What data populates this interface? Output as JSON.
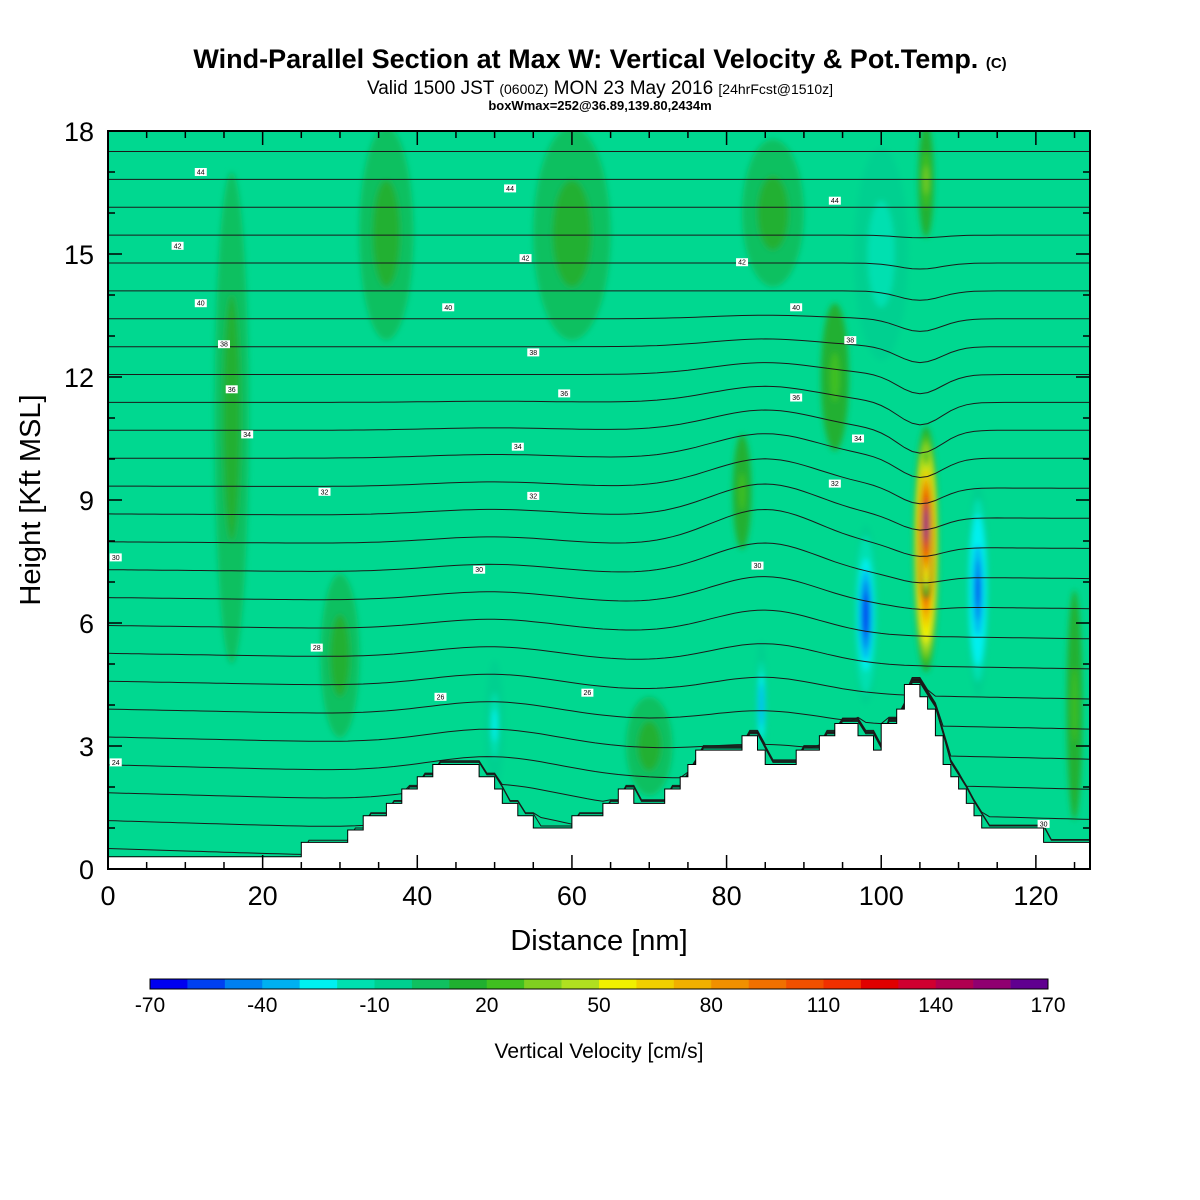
{
  "header": {
    "title": "Wind-Parallel Section at Max W: Vertical Velocity & Pot.Temp.",
    "copyright": "(C)",
    "valid_prefix": "Valid 1500 JST",
    "valid_zulu": "(0600Z)",
    "valid_date": "MON 23 May 2016",
    "forecast": "[24hrFcst@1510z]",
    "boxinfo": "boxWmax=252@36.89,139.80,2434m"
  },
  "chart_data": {
    "type": "heatmap",
    "xlabel": "Distance [nm]",
    "ylabel": "Height [Kft MSL]",
    "xlim": [
      0,
      127
    ],
    "ylim": [
      0,
      18
    ],
    "xticks": [
      0,
      20,
      40,
      60,
      80,
      100,
      120
    ],
    "yticks": [
      0,
      3,
      6,
      9,
      12,
      15,
      18
    ],
    "colorbar": {
      "label": "Vertical Velocity [cm/s]",
      "tick_labels": [
        "-70",
        "-40",
        "-10",
        "20",
        "50",
        "80",
        "110",
        "140",
        "170"
      ],
      "tick_values": [
        -70,
        -40,
        -10,
        20,
        50,
        80,
        110,
        140,
        170
      ],
      "min": -70,
      "step": 10,
      "colors": [
        "#0000f0",
        "#0040f0",
        "#0080f0",
        "#00b0f0",
        "#00f0f0",
        "#00e0b0",
        "#00d090",
        "#10c060",
        "#20b030",
        "#40c020",
        "#80d020",
        "#b0e020",
        "#f0f000",
        "#f0d000",
        "#f0b000",
        "#f09000",
        "#f07000",
        "#f05000",
        "#f03000",
        "#e00000",
        "#d00030",
        "#b00050",
        "#900070",
        "#600090"
      ]
    },
    "background_color": "#00d890",
    "terrain": [
      [
        0,
        0.3
      ],
      [
        25,
        0.3
      ],
      [
        25,
        0.65
      ],
      [
        31,
        0.65
      ],
      [
        31,
        0.95
      ],
      [
        33,
        0.95
      ],
      [
        33,
        1.3
      ],
      [
        36,
        1.3
      ],
      [
        36,
        1.6
      ],
      [
        38,
        1.6
      ],
      [
        38,
        1.95
      ],
      [
        40,
        1.95
      ],
      [
        40,
        2.25
      ],
      [
        42,
        2.25
      ],
      [
        42,
        2.55
      ],
      [
        48,
        2.55
      ],
      [
        48,
        2.25
      ],
      [
        50,
        2.25
      ],
      [
        50,
        1.95
      ],
      [
        51,
        1.95
      ],
      [
        51,
        1.6
      ],
      [
        53,
        1.6
      ],
      [
        53,
        1.3
      ],
      [
        55,
        1.3
      ],
      [
        55,
        1.0
      ],
      [
        60,
        1.0
      ],
      [
        60,
        1.3
      ],
      [
        64,
        1.3
      ],
      [
        64,
        1.6
      ],
      [
        66,
        1.6
      ],
      [
        66,
        1.95
      ],
      [
        68,
        1.95
      ],
      [
        68,
        1.6
      ],
      [
        72,
        1.6
      ],
      [
        72,
        1.95
      ],
      [
        74,
        1.95
      ],
      [
        74,
        2.25
      ],
      [
        75,
        2.25
      ],
      [
        75,
        2.55
      ],
      [
        76,
        2.55
      ],
      [
        76,
        2.9
      ],
      [
        82,
        2.9
      ],
      [
        82,
        3.25
      ],
      [
        84,
        3.25
      ],
      [
        84,
        2.9
      ],
      [
        85,
        2.9
      ],
      [
        85,
        2.55
      ],
      [
        89,
        2.55
      ],
      [
        89,
        2.9
      ],
      [
        92,
        2.9
      ],
      [
        92,
        3.25
      ],
      [
        94,
        3.25
      ],
      [
        94,
        3.55
      ],
      [
        97,
        3.55
      ],
      [
        97,
        3.25
      ],
      [
        99,
        3.25
      ],
      [
        99,
        2.9
      ],
      [
        100,
        2.9
      ],
      [
        100,
        3.55
      ],
      [
        102,
        3.55
      ],
      [
        102,
        3.9
      ],
      [
        103,
        3.9
      ],
      [
        103,
        4.5
      ],
      [
        105,
        4.5
      ],
      [
        105,
        4.2
      ],
      [
        106,
        4.2
      ],
      [
        106,
        3.9
      ],
      [
        107,
        3.9
      ],
      [
        107,
        3.25
      ],
      [
        108,
        3.25
      ],
      [
        108,
        2.55
      ],
      [
        109,
        2.55
      ],
      [
        109,
        2.25
      ],
      [
        110,
        2.25
      ],
      [
        110,
        1.95
      ],
      [
        111,
        1.95
      ],
      [
        111,
        1.6
      ],
      [
        112,
        1.6
      ],
      [
        112,
        1.3
      ],
      [
        113,
        1.3
      ],
      [
        113,
        1.0
      ],
      [
        121,
        1.0
      ],
      [
        121,
        0.65
      ],
      [
        127,
        0.65
      ]
    ],
    "w_features": [
      {
        "x": 105.8,
        "y": 7.8,
        "rx": 1.6,
        "ry": 3.0,
        "w": 160
      },
      {
        "x": 105.8,
        "y": 8.4,
        "rx": 1.0,
        "ry": 1.8,
        "w": 190
      },
      {
        "x": 105.8,
        "y": 16.8,
        "rx": 1.0,
        "ry": 1.4,
        "w": 30
      },
      {
        "x": 98.0,
        "y": 6.2,
        "rx": 1.6,
        "ry": 2.2,
        "w": -60
      },
      {
        "x": 112.5,
        "y": 6.8,
        "rx": 1.5,
        "ry": 2.6,
        "w": -55
      },
      {
        "x": 84.5,
        "y": 4.0,
        "rx": 0.8,
        "ry": 1.6,
        "w": -40
      },
      {
        "x": 50.0,
        "y": 3.5,
        "rx": 1.2,
        "ry": 1.6,
        "w": -25
      },
      {
        "x": 94.0,
        "y": 12.0,
        "rx": 1.8,
        "ry": 1.8,
        "w": 25
      },
      {
        "x": 82.0,
        "y": 9.2,
        "rx": 1.2,
        "ry": 1.4,
        "w": 25
      },
      {
        "x": 16.0,
        "y": 11.0,
        "rx": 2.2,
        "ry": 6.0,
        "w": 10
      },
      {
        "x": 36.0,
        "y": 15.5,
        "rx": 3.5,
        "ry": 2.6,
        "w": 10
      },
      {
        "x": 60.0,
        "y": 15.5,
        "rx": 5.0,
        "ry": 2.6,
        "w": 10
      },
      {
        "x": 86.0,
        "y": 16.0,
        "rx": 4.0,
        "ry": 1.8,
        "w": 10
      },
      {
        "x": 100.0,
        "y": 15.0,
        "rx": 3.5,
        "ry": 2.6,
        "w": -20
      },
      {
        "x": 30.0,
        "y": 5.2,
        "rx": 2.5,
        "ry": 2.0,
        "w": 10
      },
      {
        "x": 70.0,
        "y": 3.0,
        "rx": 3.0,
        "ry": 1.2,
        "w": 10
      },
      {
        "x": 125.0,
        "y": 4.0,
        "rx": 1.0,
        "ry": 2.8,
        "w": 25
      }
    ],
    "theta_labels": [
      {
        "x": 12,
        "y": 17.0,
        "text": "44"
      },
      {
        "x": 52,
        "y": 16.6,
        "text": "44"
      },
      {
        "x": 94,
        "y": 16.3,
        "text": "44"
      },
      {
        "x": 9,
        "y": 15.2,
        "text": "42"
      },
      {
        "x": 54,
        "y": 14.9,
        "text": "42"
      },
      {
        "x": 82,
        "y": 14.8,
        "text": "42"
      },
      {
        "x": 12,
        "y": 13.8,
        "text": "40"
      },
      {
        "x": 44,
        "y": 13.7,
        "text": "40"
      },
      {
        "x": 89,
        "y": 13.7,
        "text": "40"
      },
      {
        "x": 15,
        "y": 12.8,
        "text": "38"
      },
      {
        "x": 55,
        "y": 12.6,
        "text": "38"
      },
      {
        "x": 96,
        "y": 12.9,
        "text": "38"
      },
      {
        "x": 16,
        "y": 11.7,
        "text": "36"
      },
      {
        "x": 59,
        "y": 11.6,
        "text": "36"
      },
      {
        "x": 89,
        "y": 11.5,
        "text": "36"
      },
      {
        "x": 18,
        "y": 10.6,
        "text": "34"
      },
      {
        "x": 53,
        "y": 10.3,
        "text": "34"
      },
      {
        "x": 97,
        "y": 10.5,
        "text": "34"
      },
      {
        "x": 28,
        "y": 9.2,
        "text": "32"
      },
      {
        "x": 55,
        "y": 9.1,
        "text": "32"
      },
      {
        "x": 94,
        "y": 9.4,
        "text": "32"
      },
      {
        "x": 1,
        "y": 7.6,
        "text": "30"
      },
      {
        "x": 48,
        "y": 7.3,
        "text": "30"
      },
      {
        "x": 84,
        "y": 7.4,
        "text": "30"
      },
      {
        "x": 27,
        "y": 5.4,
        "text": "28"
      },
      {
        "x": 43,
        "y": 4.2,
        "text": "26"
      },
      {
        "x": 62,
        "y": 4.3,
        "text": "26"
      },
      {
        "x": 1,
        "y": 2.6,
        "text": "24"
      },
      {
        "x": 121,
        "y": 1.1,
        "text": "30"
      }
    ]
  }
}
